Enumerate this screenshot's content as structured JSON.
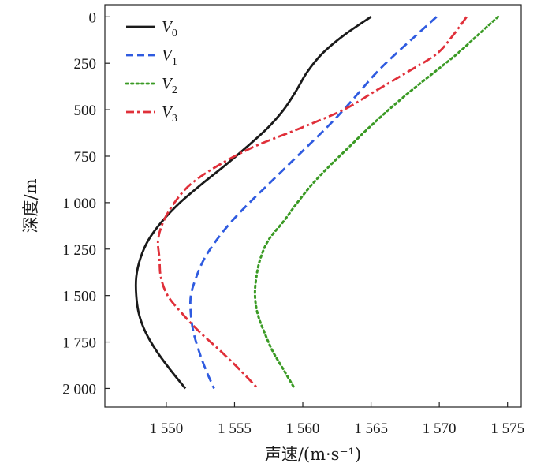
{
  "chart_data": {
    "type": "line",
    "title": "",
    "xlabel": "声速/(m·s⁻¹)",
    "ylabel": "深度/m",
    "xlim": [
      1545.5,
      1576
    ],
    "ylim": [
      2100,
      -65
    ],
    "x_ticks": [
      1550,
      1555,
      1560,
      1565,
      1570,
      1575
    ],
    "x_tick_labels": [
      "1 550",
      "1 555",
      "1 560",
      "1 565",
      "1 570",
      "1 575"
    ],
    "y_ticks": [
      0,
      250,
      500,
      750,
      1000,
      1250,
      1500,
      1750,
      2000
    ],
    "y_tick_labels": [
      "0",
      "250",
      "500",
      "750",
      "1 000",
      "1 250",
      "1 500",
      "1 750",
      "2 000"
    ],
    "grid": false,
    "legend": "top-left",
    "series": [
      {
        "name": "V",
        "sub": "0",
        "color": "#1a1a1a",
        "dash": "solid",
        "points": [
          [
            1565.0,
            0
          ],
          [
            1563.0,
            100
          ],
          [
            1561.4,
            200
          ],
          [
            1560.3,
            300
          ],
          [
            1559.5,
            400
          ],
          [
            1558.6,
            500
          ],
          [
            1557.4,
            600
          ],
          [
            1555.9,
            700
          ],
          [
            1554.3,
            800
          ],
          [
            1552.6,
            900
          ],
          [
            1551.0,
            1000
          ],
          [
            1549.7,
            1100
          ],
          [
            1548.7,
            1200
          ],
          [
            1548.1,
            1300
          ],
          [
            1547.8,
            1400
          ],
          [
            1547.8,
            1500
          ],
          [
            1548.0,
            1600
          ],
          [
            1548.5,
            1700
          ],
          [
            1549.3,
            1800
          ],
          [
            1550.3,
            1900
          ],
          [
            1551.4,
            2000
          ]
        ]
      },
      {
        "name": "V",
        "sub": "1",
        "color": "#2f5be0",
        "dash": "dashed",
        "points": [
          [
            1569.8,
            0
          ],
          [
            1568.3,
            100
          ],
          [
            1566.8,
            200
          ],
          [
            1565.4,
            300
          ],
          [
            1564.2,
            400
          ],
          [
            1563.0,
            500
          ],
          [
            1561.7,
            600
          ],
          [
            1560.3,
            700
          ],
          [
            1558.9,
            800
          ],
          [
            1557.5,
            900
          ],
          [
            1556.1,
            1000
          ],
          [
            1554.8,
            1100
          ],
          [
            1553.7,
            1200
          ],
          [
            1552.8,
            1300
          ],
          [
            1552.2,
            1400
          ],
          [
            1551.8,
            1500
          ],
          [
            1551.8,
            1600
          ],
          [
            1552.0,
            1700
          ],
          [
            1552.4,
            1800
          ],
          [
            1552.9,
            1900
          ],
          [
            1553.5,
            2000
          ]
        ]
      },
      {
        "name": "V",
        "sub": "2",
        "color": "#3a9a24",
        "dash": "dotted",
        "points": [
          [
            1574.3,
            0
          ],
          [
            1572.8,
            100
          ],
          [
            1571.3,
            200
          ],
          [
            1569.6,
            300
          ],
          [
            1567.9,
            400
          ],
          [
            1566.3,
            500
          ],
          [
            1564.8,
            600
          ],
          [
            1563.4,
            700
          ],
          [
            1562.0,
            800
          ],
          [
            1560.7,
            900
          ],
          [
            1559.6,
            1000
          ],
          [
            1558.6,
            1100
          ],
          [
            1557.5,
            1200
          ],
          [
            1556.9,
            1300
          ],
          [
            1556.6,
            1400
          ],
          [
            1556.5,
            1500
          ],
          [
            1556.7,
            1600
          ],
          [
            1557.2,
            1700
          ],
          [
            1557.8,
            1800
          ],
          [
            1558.6,
            1900
          ],
          [
            1559.4,
            2000
          ]
        ]
      },
      {
        "name": "V",
        "sub": "3",
        "color": "#e0303a",
        "dash": "dashdot",
        "points": [
          [
            1572.0,
            0
          ],
          [
            1571.0,
            100
          ],
          [
            1569.8,
            200
          ],
          [
            1567.6,
            300
          ],
          [
            1565.3,
            400
          ],
          [
            1563.0,
            500
          ],
          [
            1559.8,
            600
          ],
          [
            1556.4,
            700
          ],
          [
            1553.8,
            800
          ],
          [
            1551.8,
            900
          ],
          [
            1550.6,
            1000
          ],
          [
            1549.8,
            1100
          ],
          [
            1549.4,
            1200
          ],
          [
            1549.5,
            1300
          ],
          [
            1549.6,
            1400
          ],
          [
            1550.1,
            1500
          ],
          [
            1551.2,
            1600
          ],
          [
            1552.5,
            1700
          ],
          [
            1554.0,
            1800
          ],
          [
            1555.4,
            1900
          ],
          [
            1556.7,
            2000
          ]
        ]
      }
    ]
  }
}
